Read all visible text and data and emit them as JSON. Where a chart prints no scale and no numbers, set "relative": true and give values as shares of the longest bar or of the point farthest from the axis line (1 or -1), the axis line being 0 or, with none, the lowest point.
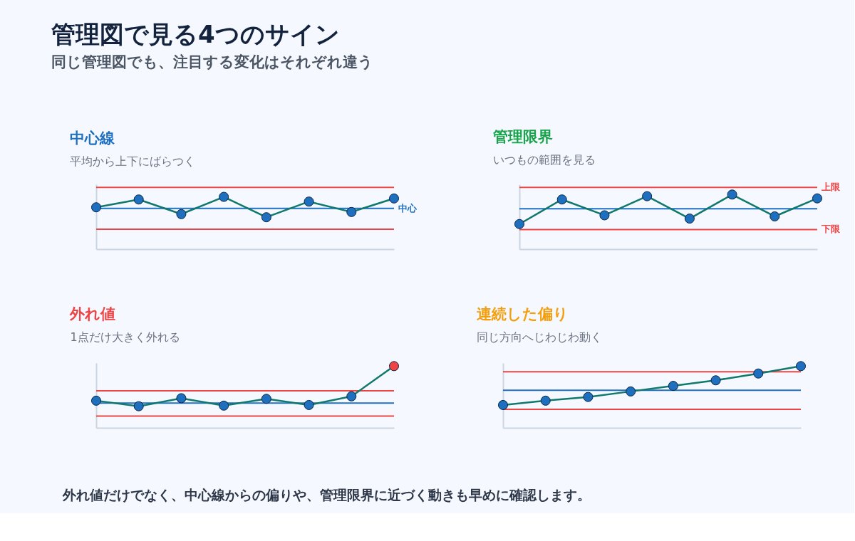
{
  "chart_data": [
    {
      "type": "other",
      "title": "管理図で見る4つのサイン",
      "subtitle": "同じ管理図でも、注目する変化はそれぞれ違う",
      "annotations": [
        "外れ値だけでなく、中心線からの偏りや、管理限界に近づく動きも早めに確認します。"
      ]
    },
    {
      "type": "line",
      "title": "中心線",
      "subtitle": "平均から上下にばらつく",
      "categories": [
        null,
        null,
        null,
        null,
        null,
        null,
        null,
        null
      ],
      "relative": true,
      "tick_labels": false,
      "marker": "circle",
      "series": [
        {
          "color": "#1f6fbf",
          "values": [
            0.8,
            0.95,
            0.67,
            1.0,
            0.61,
            0.91,
            0.71,
            0.97
          ]
        }
      ],
      "ref_lines": [
        {
          "axis": "y",
          "value": 1.18,
          "color": "#ef4444"
        },
        {
          "axis": "y",
          "value": 0.78,
          "label": "中心",
          "color": "#1f6fbf"
        },
        {
          "axis": "y",
          "value": 0.38,
          "color": "#ef4444"
        }
      ]
    },
    {
      "type": "line",
      "title": "管理限界",
      "subtitle": "いつもの範囲を見る",
      "categories": [
        null,
        null,
        null,
        null,
        null,
        null,
        null,
        null
      ],
      "relative": true,
      "tick_labels": false,
      "marker": "circle",
      "series": [
        {
          "color": "#1f6fbf",
          "values": [
            0.46,
            0.91,
            0.62,
            0.97,
            0.56,
            1.0,
            0.6,
            0.93
          ]
        }
      ],
      "ref_lines": [
        {
          "axis": "y",
          "value": 1.13,
          "label": "上限",
          "color": "#ef4444"
        },
        {
          "axis": "y",
          "value": 0.74,
          "color": "#1f6fbf"
        },
        {
          "axis": "y",
          "value": 0.36,
          "label": "下限",
          "color": "#ef4444"
        }
      ]
    },
    {
      "type": "line",
      "title": "外れ値",
      "subtitle": "1点だけ大きく外れる",
      "categories": [
        null,
        null,
        null,
        null,
        null,
        null,
        null,
        null
      ],
      "relative": true,
      "tick_labels": false,
      "marker": "circle",
      "series": [
        {
          "colors": [
            "#1f6fbf",
            "#1f6fbf",
            "#1f6fbf",
            "#1f6fbf",
            "#1f6fbf",
            "#1f6fbf",
            "#1f6fbf",
            "#ef4444"
          ],
          "values": [
            0.44,
            0.35,
            0.48,
            0.36,
            0.47,
            0.37,
            0.51,
            1.0
          ]
        }
      ],
      "ref_lines": [
        {
          "axis": "y",
          "value": 0.6,
          "color": "#ef4444"
        },
        {
          "axis": "y",
          "value": 0.4,
          "color": "#1f6fbf"
        },
        {
          "axis": "y",
          "value": 0.19,
          "color": "#ef4444"
        }
      ]
    },
    {
      "type": "line",
      "title": "連続した偏り",
      "subtitle": "同じ方向へじわじわ動く",
      "categories": [
        null,
        null,
        null,
        null,
        null,
        null,
        null,
        null
      ],
      "relative": true,
      "tick_labels": false,
      "marker": "circle",
      "series": [
        {
          "color": "#1f6fbf",
          "values": [
            0.37,
            0.44,
            0.5,
            0.59,
            0.68,
            0.77,
            0.88,
            1.0
          ]
        }
      ],
      "ref_lines": [
        {
          "axis": "y",
          "value": 0.91,
          "color": "#ef4444"
        },
        {
          "axis": "y",
          "value": 0.61,
          "color": "#1f6fbf"
        },
        {
          "axis": "y",
          "value": 0.3,
          "color": "#ef4444"
        }
      ]
    }
  ]
}
